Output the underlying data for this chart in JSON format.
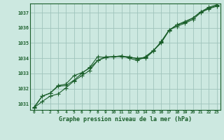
{
  "xlabel": "Graphe pression niveau de la mer (hPa)",
  "background_color": "#cce8e0",
  "grid_color": "#a8ccC4",
  "line_color": "#1a5e2a",
  "xlim": [
    -0.5,
    23.5
  ],
  "ylim": [
    1030.6,
    1037.6
  ],
  "yticks": [
    1031,
    1032,
    1033,
    1034,
    1035,
    1036,
    1037
  ],
  "xticks": [
    0,
    1,
    2,
    3,
    4,
    5,
    6,
    7,
    8,
    9,
    10,
    11,
    12,
    13,
    14,
    15,
    16,
    17,
    18,
    19,
    20,
    21,
    22,
    23
  ],
  "series1_x": [
    0,
    1,
    2,
    3,
    4,
    5,
    6,
    7,
    8,
    9,
    10,
    11,
    12,
    13,
    14,
    15,
    16,
    17,
    18,
    19,
    20,
    21,
    22,
    23
  ],
  "series1_y": [
    1030.8,
    1031.5,
    1031.7,
    1032.15,
    1032.2,
    1032.55,
    1033.0,
    1033.4,
    1034.1,
    1034.05,
    1034.1,
    1034.1,
    1034.1,
    1033.95,
    1034.0,
    1034.45,
    1035.1,
    1035.85,
    1036.2,
    1036.35,
    1036.65,
    1037.05,
    1037.3,
    1037.45
  ],
  "series2_x": [
    0,
    1,
    2,
    3,
    4,
    5,
    6,
    7,
    8,
    9,
    10,
    11,
    12,
    13,
    14,
    15,
    16,
    17,
    18,
    19,
    20,
    21,
    22,
    23
  ],
  "series2_y": [
    1030.75,
    1031.15,
    1031.5,
    1031.65,
    1032.05,
    1032.5,
    1032.85,
    1033.2,
    1033.85,
    1034.05,
    1034.1,
    1034.15,
    1034.0,
    1033.85,
    1034.1,
    1034.5,
    1035.05,
    1035.85,
    1036.1,
    1036.3,
    1036.55,
    1037.0,
    1037.25,
    1037.42
  ],
  "series3_x": [
    0,
    1,
    2,
    3,
    4,
    5,
    6,
    7,
    8,
    9,
    10,
    11,
    12,
    13,
    14,
    15,
    16,
    17,
    18,
    19,
    20,
    21,
    22,
    23
  ],
  "series3_y": [
    1030.75,
    1031.5,
    1031.7,
    1032.2,
    1032.3,
    1032.85,
    1033.05,
    1033.35,
    1033.85,
    1034.1,
    1034.1,
    1034.15,
    1034.05,
    1034.0,
    1034.05,
    1034.5,
    1035.0,
    1035.82,
    1036.2,
    1036.42,
    1036.65,
    1037.05,
    1037.35,
    1037.52
  ]
}
